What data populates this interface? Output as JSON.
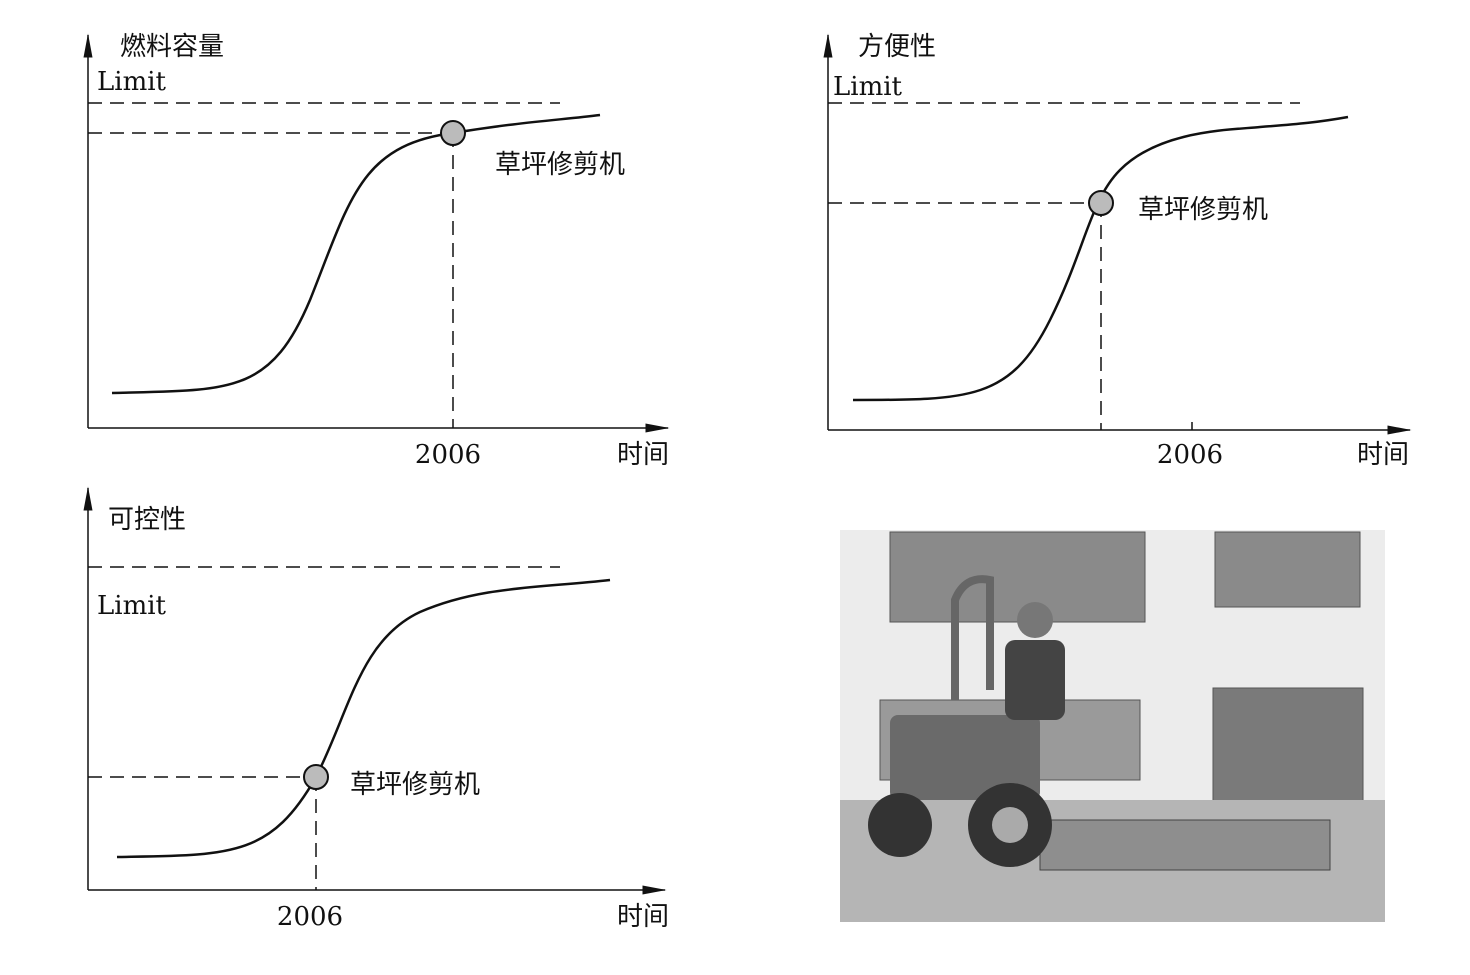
{
  "panels": [
    {
      "y_label": "燃料容量",
      "limit_label": "Limit",
      "point_label": "草坪修剪机",
      "x_tick": "2006",
      "x_label": "时间"
    },
    {
      "y_label": "方便性",
      "limit_label": "Limit",
      "point_label": "草坪修剪机",
      "x_tick": "2006",
      "x_label": "时间"
    },
    {
      "y_label": "可控性",
      "limit_label": "Limit",
      "point_label": "草坪修剪机",
      "x_tick": "2006",
      "x_label": "时间"
    }
  ]
}
